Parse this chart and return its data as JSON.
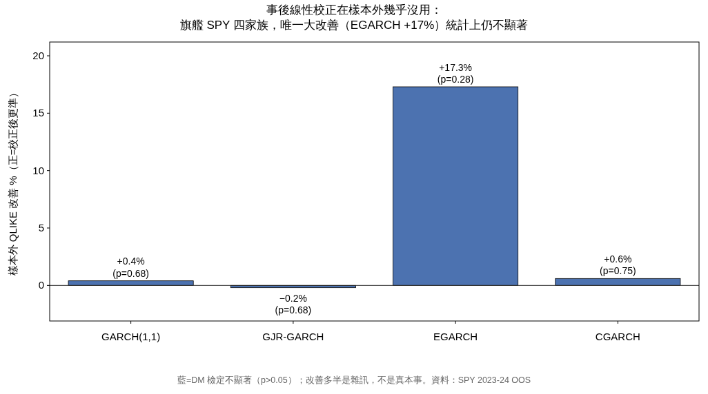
{
  "chart_data": {
    "type": "bar",
    "title": "事後線性校正在樣本外幾乎沒用：",
    "subtitle": "旗艦 SPY 四家族，唯一大改善（EGARCH +17%）統計上仍不顯著",
    "ylabel": "樣本外 QLIKE 改善 %（正=校正後更準）",
    "categories": [
      "GARCH(1,1)",
      "GJR-GARCH",
      "EGARCH",
      "CGARCH"
    ],
    "series": [
      {
        "color": "#4c72b0",
        "values": [
          0.4,
          -0.2,
          17.3,
          0.6
        ],
        "value_labels": [
          "+0.4%\n(p=0.68)",
          "−0.2%\n(p=0.68)",
          "+17.3%\n(p=0.28)",
          "+0.6%\n(p=0.75)"
        ]
      }
    ],
    "ylim": [
      -3.1,
      21.2
    ],
    "yticks": [
      0,
      5,
      10,
      15,
      20
    ],
    "ref_lines": [
      {
        "axis": "y",
        "value": 0,
        "color": "#333333"
      }
    ],
    "grid": false,
    "annotations": [
      "藍=DM 檢定不顯著（p>0.05）；改善多半是雜訊，不是真本事。資料：SPY 2023-24 OOS"
    ]
  }
}
